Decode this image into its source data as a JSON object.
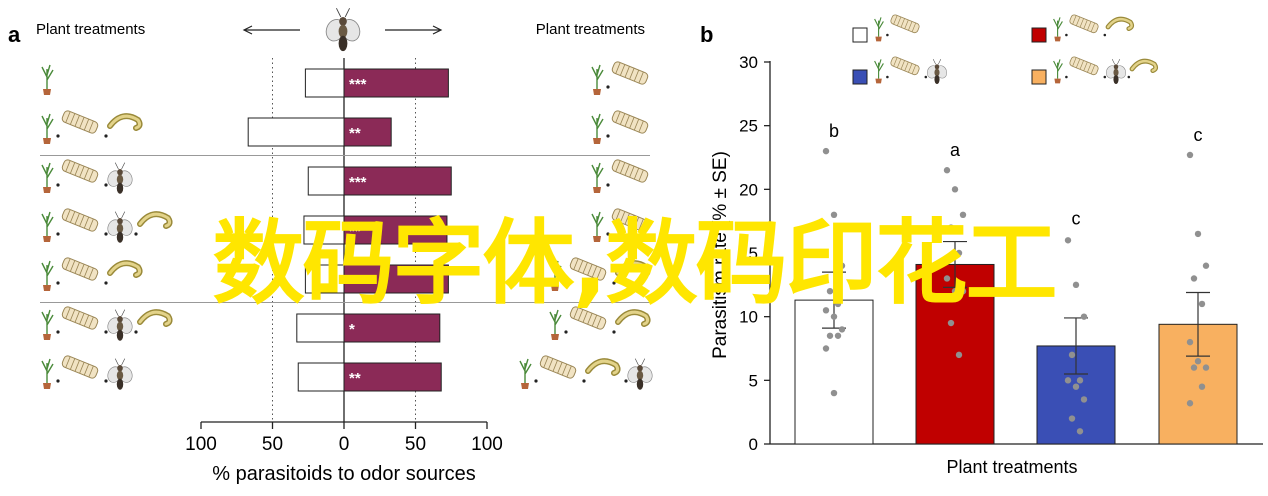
{
  "panel_a": {
    "letter": "a",
    "left_header": "Plant treatments",
    "right_header": "Plant treatments",
    "insect_icon": "parasitoid-wasp-icon"
  },
  "panel_b": {
    "letter": "b",
    "legend_icons": [
      "plant-icon",
      "caterpillar-frass-icon",
      "caterpillar-icon",
      "parasitoid-wasp-icon"
    ]
  },
  "overlay_text": "数码字体,数码印花工",
  "colors": {
    "bar_a": "#8b2a57",
    "bar_white": "#ffffff",
    "red": "#c00000",
    "blue": "#3a4fb5",
    "orange": "#f8b060",
    "dot": "#909090",
    "overlay": "#ffe600"
  },
  "chart_data": [
    {
      "type": "bar",
      "orientation": "horizontal",
      "xlabel": "% parasitoids to odor sources",
      "xlim": [
        -100,
        100
      ],
      "xticks": [
        -100,
        -50,
        0,
        50,
        100
      ],
      "xtick_labels": [
        "100",
        "50",
        "0",
        "50",
        "100"
      ],
      "reference_lines": [
        -50,
        50
      ],
      "rows": [
        {
          "left": 27,
          "right": 73,
          "sig": "***",
          "left_icons": [
            "plant"
          ],
          "right_icons": [
            "plant",
            "frass"
          ]
        },
        {
          "left": 67,
          "right": 33,
          "sig": "**",
          "left_icons": [
            "plant",
            "frass",
            "caterpillar"
          ],
          "right_icons": [
            "plant",
            "frass"
          ]
        },
        {
          "left": 25,
          "right": 75,
          "sig": "***",
          "left_icons": [
            "plant",
            "frass",
            "wasp"
          ],
          "right_icons": [
            "plant",
            "frass"
          ]
        },
        {
          "left": 28,
          "right": 72,
          "sig": "**",
          "left_icons": [
            "plant",
            "frass",
            "wasp",
            "caterpillar"
          ],
          "right_icons": [
            "plant",
            "frass"
          ]
        },
        {
          "left": 27,
          "right": 73,
          "sig": "***",
          "left_icons": [
            "plant",
            "frass",
            "caterpillar"
          ],
          "right_icons": [
            "plant",
            "frass",
            "caterpillar"
          ]
        },
        {
          "left": 33,
          "right": 67,
          "sig": "*",
          "left_icons": [
            "plant",
            "frass",
            "wasp",
            "caterpillar"
          ],
          "right_icons": [
            "plant",
            "frass",
            "caterpillar"
          ]
        },
        {
          "left": 32,
          "right": 68,
          "sig": "**",
          "left_icons": [
            "plant",
            "frass",
            "wasp"
          ],
          "right_icons": [
            "plant",
            "frass",
            "caterpillar",
            "wasp"
          ]
        }
      ],
      "group_separators_after_rows": [
        1,
        4
      ]
    },
    {
      "type": "bar",
      "xlabel": "Plant treatments",
      "ylabel": "Parasitism rate (% ± SE)",
      "ylim": [
        0,
        30
      ],
      "yticks": [
        0,
        5,
        10,
        15,
        20,
        25,
        30
      ],
      "legend_placement": "top",
      "series": [
        {
          "value": 11.3,
          "se": 2.2,
          "letter": "b",
          "color": "#ffffff",
          "legend_icons": [
            "plant",
            "frass"
          ],
          "points": [
            23,
            18,
            14,
            12,
            11,
            10.5,
            10,
            9,
            8.5,
            8.5,
            7.5,
            4
          ]
        },
        {
          "value": 14.1,
          "se": 1.8,
          "letter": "a",
          "color": "#c00000",
          "legend_icons": [
            "plant",
            "frass",
            "caterpillar"
          ],
          "points": [
            21.5,
            20,
            18,
            17,
            15,
            13,
            12,
            12,
            9.5,
            7
          ]
        },
        {
          "value": 7.7,
          "se": 2.2,
          "letter": "c",
          "color": "#3a4fb5",
          "legend_icons": [
            "plant",
            "frass",
            "wasp"
          ],
          "points": [
            16,
            12.5,
            10,
            7,
            5,
            5,
            4.5,
            3.5,
            2,
            1
          ]
        },
        {
          "value": 9.4,
          "se": 2.5,
          "letter": "c",
          "color": "#f8b060",
          "legend_icons": [
            "plant",
            "frass",
            "wasp",
            "caterpillar"
          ],
          "points": [
            22.7,
            16.5,
            14,
            13,
            11,
            8,
            6.5,
            6,
            6,
            4.5,
            3.2
          ]
        }
      ]
    }
  ]
}
